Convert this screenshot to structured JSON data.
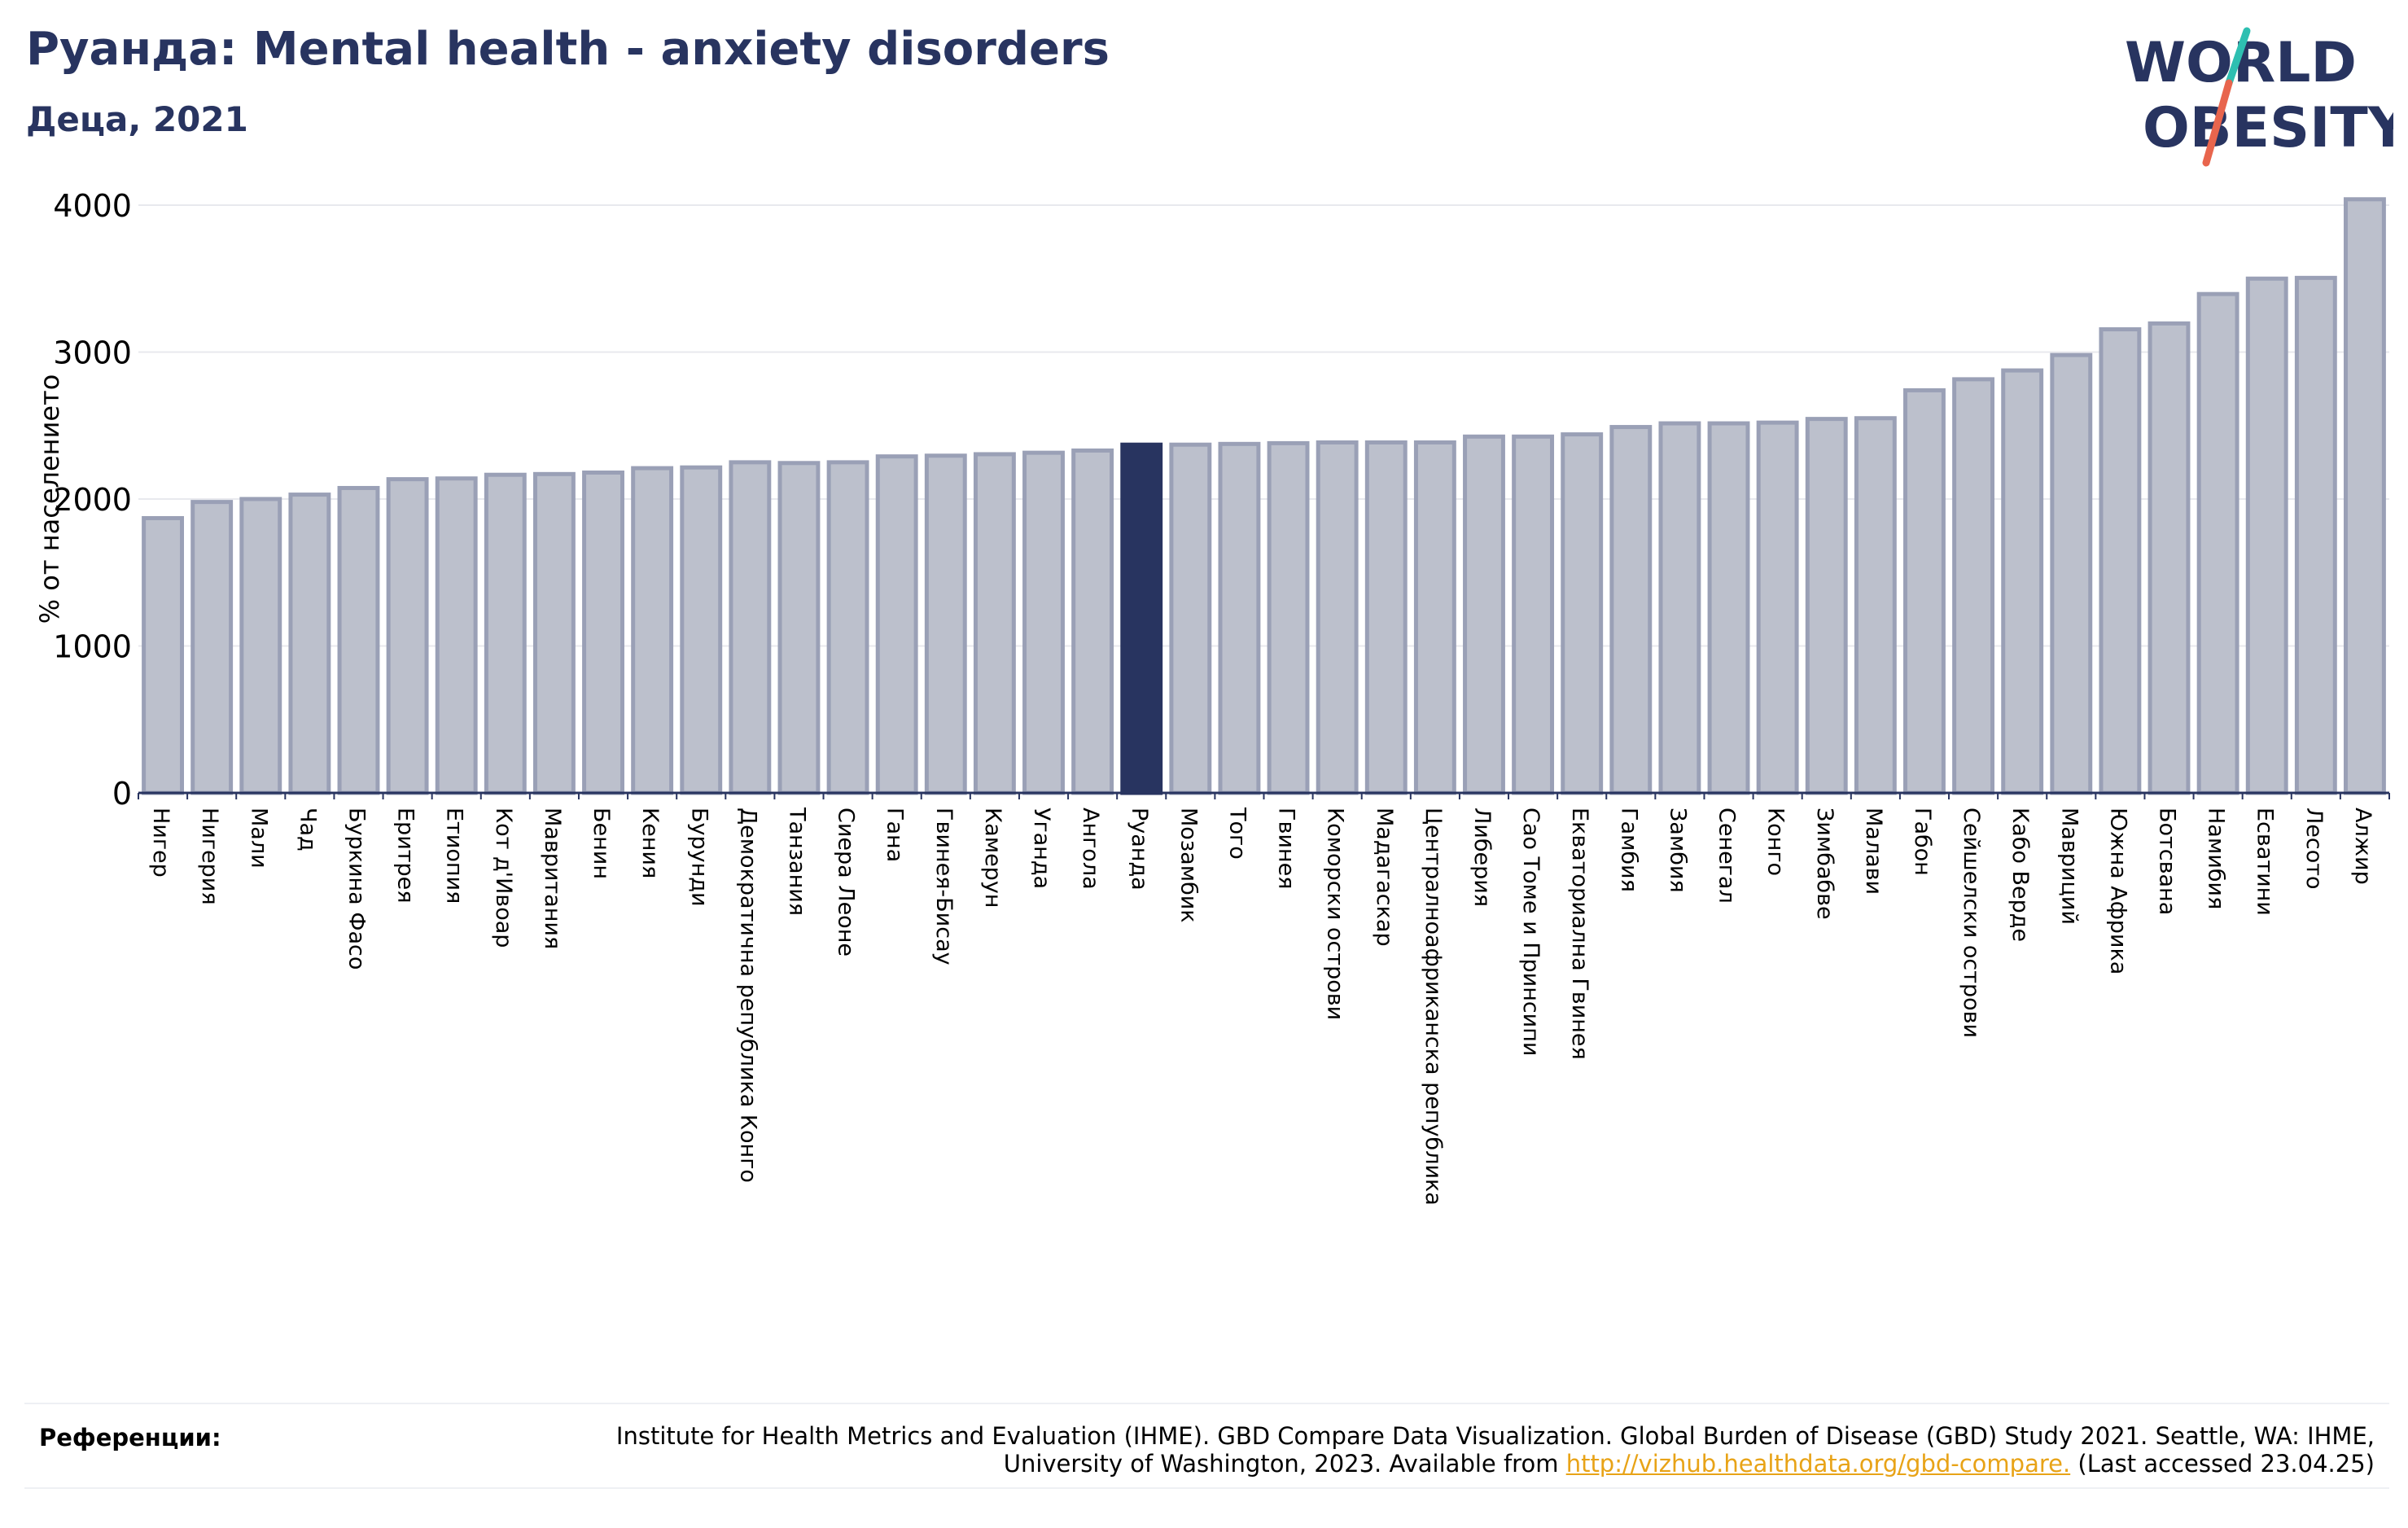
{
  "header": {
    "title": "Руанда: Mental health - anxiety disorders",
    "subtitle": "Деца, 2021"
  },
  "logo": {
    "line1": "WORLD",
    "line2": "OBESITY",
    "colors": {
      "text": "#283460",
      "slash_top": "#2ebfb1",
      "slash_bottom": "#e8654d"
    }
  },
  "colors": {
    "bar_fill": "#bcc0cc",
    "bar_edge": "#9aa0b6",
    "highlight": "#283460",
    "axis_text": "#000000",
    "grid": "#e8e9ee"
  },
  "chart_data": {
    "type": "bar",
    "ylabel": "% от населението",
    "ylim": [
      0,
      4050
    ],
    "yticks": [
      0,
      1000,
      2000,
      3000,
      4000
    ],
    "grid": true,
    "highlight_category": "Руанда",
    "categories": [
      "Нигер",
      "Нигерия",
      "Мали",
      "Чад",
      "Буркина Фасо",
      "Еритрея",
      "Етиопия",
      "Кот д'Ивоар",
      "Мавритания",
      "Бенин",
      "Кения",
      "Бурунди",
      "Демократична република Конго",
      "Танзания",
      "Сиера Леоне",
      "Гана",
      "Гвинея-Бисау",
      "Камерун",
      "Уганда",
      "Ангола",
      "Руанда",
      "Мозамбик",
      "Того",
      "Гвинея",
      "Коморски острови",
      "Мадагаскар",
      "Централноафриканска република",
      "Либерия",
      "Сао Томе и Принсипи",
      "Екваториална Гвинея",
      "Гамбия",
      "Замбия",
      "Сенегал",
      "Конго",
      "Зимбабве",
      "Малави",
      "Габон",
      "Сейшелски острови",
      "Кабо Верде",
      "Мавриций",
      "Южна Африка",
      "Ботсвана",
      "Намибия",
      "Есватини",
      "Лесото",
      "Алжир"
    ],
    "values": [
      1870,
      1980,
      2000,
      2030,
      2075,
      2135,
      2140,
      2165,
      2170,
      2180,
      2210,
      2215,
      2250,
      2245,
      2250,
      2290,
      2295,
      2305,
      2315,
      2330,
      2370,
      2370,
      2375,
      2380,
      2385,
      2385,
      2385,
      2425,
      2425,
      2440,
      2490,
      2515,
      2515,
      2520,
      2545,
      2550,
      2740,
      2815,
      2875,
      2980,
      3155,
      3195,
      3395,
      3500,
      3505,
      4040
    ]
  },
  "references": {
    "label": "Референции:",
    "text_before": "Institute for Health Metrics and Evaluation (IHME). GBD Compare Data Visualization. Global Burden of Disease (GBD) Study 2021. Seattle, WA: IHME, University of Washington, 2023. Available from ",
    "link": "http://vizhub.healthdata.org/gbd-compare.",
    "text_after": " (Last accessed 23.04.25)"
  }
}
